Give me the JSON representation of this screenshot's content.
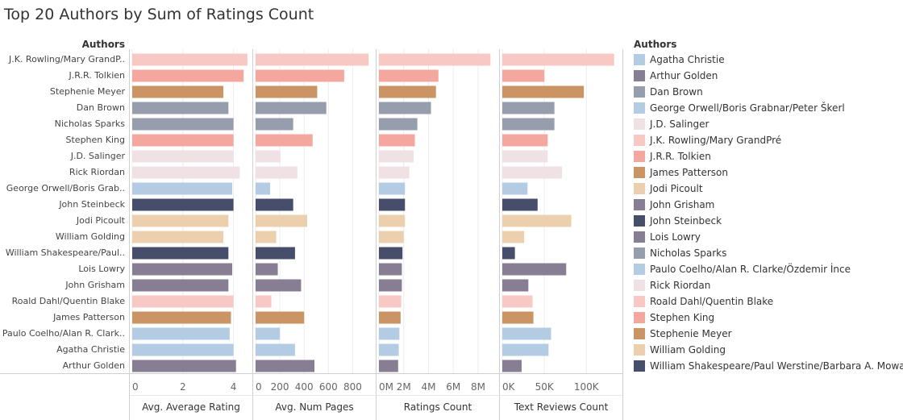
{
  "title": "Top 20 Authors by Sum of Ratings Count",
  "chart_data": {
    "type": "bar",
    "row_header": "Authors",
    "categories": [
      "J.K. Rowling/Mary GrandP..",
      "J.R.R. Tolkien",
      "Stephenie Meyer",
      "Dan Brown",
      "Nicholas Sparks",
      "Stephen King",
      "J.D. Salinger",
      "Rick Riordan",
      "George Orwell/Boris Grab..",
      "John Steinbeck",
      "Jodi Picoult",
      "William Golding",
      "William Shakespeare/Paul..",
      "Lois Lowry",
      "John Grisham",
      "Roald Dahl/Quentin Blake",
      "James Patterson",
      "Paulo Coelho/Alan R. Clark..",
      "Agatha Christie",
      "Arthur Golden"
    ],
    "category_colors": [
      "#f8c9c4",
      "#f3a79e",
      "#cb9465",
      "#969ead",
      "#969ead",
      "#f3a79e",
      "#f0e2e4",
      "#f0e2e4",
      "#b3cce4",
      "#474e6c",
      "#eccfac",
      "#eccfac",
      "#474e6c",
      "#877e94",
      "#877e94",
      "#f8c9c4",
      "#cb9465",
      "#b3cce4",
      "#b3cce4",
      "#877e94"
    ],
    "series": [
      {
        "name": "Avg. Average Rating",
        "values": [
          4.55,
          4.4,
          3.6,
          3.8,
          4.0,
          4.0,
          4.0,
          4.25,
          3.95,
          4.0,
          3.8,
          3.6,
          3.8,
          3.95,
          3.8,
          4.0,
          3.9,
          3.85,
          4.0,
          4.1
        ],
        "ticks": [
          "0",
          "2",
          "4"
        ],
        "tick_values": [
          0,
          2,
          4
        ],
        "max": 4.65
      },
      {
        "name": "Avg. Num Pages",
        "values": [
          932,
          730,
          508,
          583,
          310,
          470,
          205,
          345,
          120,
          310,
          425,
          170,
          325,
          183,
          375,
          130,
          400,
          200,
          325,
          485
        ],
        "ticks": [
          "0",
          "200",
          "400",
          "600",
          "800"
        ],
        "tick_values": [
          0,
          200,
          400,
          600,
          800
        ],
        "max": 970
      },
      {
        "name": "Ratings Count",
        "values": [
          9000000,
          4800000,
          4600000,
          4200000,
          3100000,
          2900000,
          2800000,
          2450000,
          2100000,
          2100000,
          2100000,
          2000000,
          1900000,
          1850000,
          1850000,
          1800000,
          1750000,
          1650000,
          1600000,
          1550000
        ],
        "ticks": [
          "0M",
          "2M",
          "4M",
          "6M",
          "8M"
        ],
        "tick_values": [
          0,
          2000000,
          4000000,
          6000000,
          8000000
        ],
        "max": 9500000
      },
      {
        "name": "Text Reviews Count",
        "values": [
          133000,
          50000,
          97000,
          62000,
          62000,
          54000,
          54000,
          71000,
          30000,
          42000,
          82000,
          26000,
          15000,
          76000,
          31000,
          36000,
          37000,
          58000,
          55000,
          23000
        ],
        "ticks": [
          "0K",
          "50K",
          "100K"
        ],
        "tick_values": [
          0,
          50000,
          100000
        ],
        "max": 140000
      }
    ],
    "legend": {
      "title": "Authors",
      "items": [
        {
          "label": "Agatha Christie",
          "color": "#b3cce4"
        },
        {
          "label": "Arthur Golden",
          "color": "#877e94"
        },
        {
          "label": "Dan Brown",
          "color": "#969ead"
        },
        {
          "label": "George Orwell/Boris Grabnar/Peter Škerl",
          "color": "#b3cce4"
        },
        {
          "label": "J.D. Salinger",
          "color": "#f0e2e4"
        },
        {
          "label": "J.K. Rowling/Mary GrandPré",
          "color": "#f8c9c4"
        },
        {
          "label": "J.R.R. Tolkien",
          "color": "#f3a79e"
        },
        {
          "label": "James Patterson",
          "color": "#cb9465"
        },
        {
          "label": "Jodi Picoult",
          "color": "#eccfac"
        },
        {
          "label": "John Grisham",
          "color": "#877e94"
        },
        {
          "label": "John Steinbeck",
          "color": "#474e6c"
        },
        {
          "label": "Lois Lowry",
          "color": "#877e94"
        },
        {
          "label": "Nicholas Sparks",
          "color": "#969ead"
        },
        {
          "label": "Paulo Coelho/Alan R. Clarke/Özdemir İnce",
          "color": "#b3cce4"
        },
        {
          "label": "Rick Riordan",
          "color": "#f0e2e4"
        },
        {
          "label": "Roald Dahl/Quentin Blake",
          "color": "#f8c9c4"
        },
        {
          "label": "Stephen King",
          "color": "#f3a79e"
        },
        {
          "label": "Stephenie Meyer",
          "color": "#cb9465"
        },
        {
          "label": "William Golding",
          "color": "#eccfac"
        },
        {
          "label": "William Shakespeare/Paul Werstine/Barbara A. Mowat",
          "color": "#474e6c"
        }
      ]
    }
  }
}
